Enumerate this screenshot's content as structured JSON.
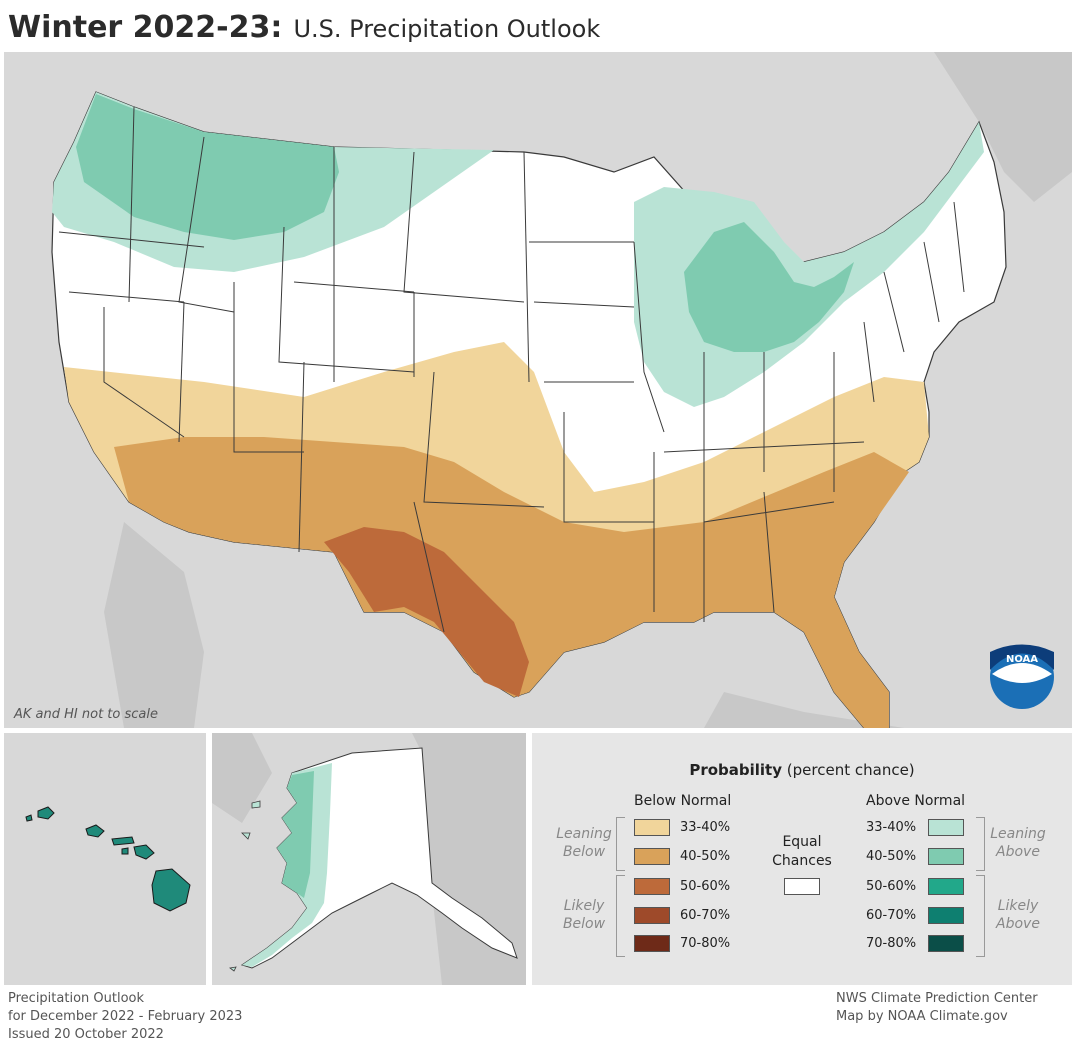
{
  "title": {
    "main": "Winter 2022-23:",
    "sub": "U.S. Precipitation Outlook"
  },
  "map_note": "AK and HI not to scale",
  "logo_text": "NOAA",
  "legend": {
    "title_bold": "Probability",
    "title_rest": "(percent chance)",
    "below_header": "Below Normal",
    "above_header": "Above Normal",
    "below": [
      {
        "label": "33-40%",
        "color": "#f1d59b"
      },
      {
        "label": "40-50%",
        "color": "#d9a25a"
      },
      {
        "label": "50-60%",
        "color": "#bd6a3a"
      },
      {
        "label": "60-70%",
        "color": "#9e4a2a"
      },
      {
        "label": "70-80%",
        "color": "#6e2a18"
      }
    ],
    "above": [
      {
        "label": "33-40%",
        "color": "#b9e3d5"
      },
      {
        "label": "40-50%",
        "color": "#7fcbb0"
      },
      {
        "label": "50-60%",
        "color": "#22a88a"
      },
      {
        "label": "60-70%",
        "color": "#0e7f70"
      },
      {
        "label": "70-80%",
        "color": "#0b4e48"
      }
    ],
    "leaning_below": [
      "Leaning",
      "Below"
    ],
    "likely_below": [
      "Likely",
      "Below"
    ],
    "leaning_above": [
      "Leaning",
      "Above"
    ],
    "likely_above": [
      "Likely",
      "Above"
    ],
    "equal_chances": [
      "Equal",
      "Chances"
    ]
  },
  "footer_left": [
    "Precipitation Outlook",
    "for December 2022 - February 2023",
    "Issued 20 October 2022"
  ],
  "footer_right": [
    "NWS Climate Prediction Center",
    "Map by NOAA Climate.gov"
  ],
  "colors": {
    "background_land": "#d8d8d8",
    "lean_below": "#f1d59b",
    "below_40_50": "#d9a25a",
    "below_50_60": "#bd6a3a",
    "lean_above": "#b9e3d5",
    "above_40_50": "#7fcbb0",
    "hawaii": "#1f8a7a",
    "noaa_blue": "#1b6fb6"
  }
}
